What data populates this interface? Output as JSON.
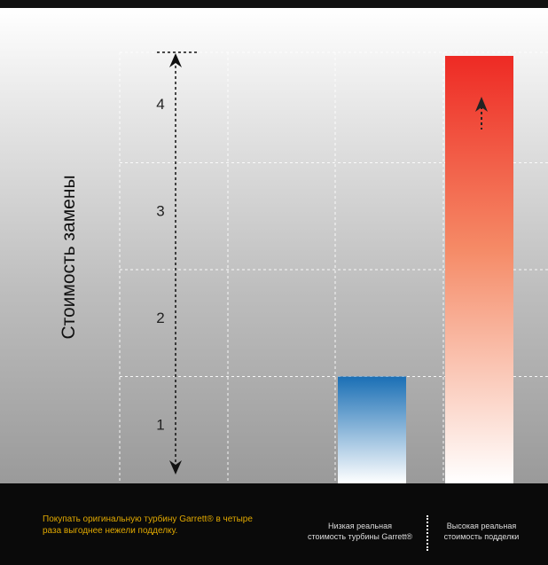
{
  "chart_data": {
    "type": "bar",
    "ylabel": "Стоимость замены",
    "y_ticks": [
      "1",
      "2",
      "3",
      "4"
    ],
    "ylim": [
      0,
      4.5
    ],
    "grid": true,
    "series": [
      {
        "category": "Низкая реальная стоимость турбины Garrett®",
        "value": 1,
        "color": "#1a6fb5"
      },
      {
        "category": "Высокая реальная стоимость подделки",
        "value": 4,
        "color": "#e8302a"
      }
    ]
  },
  "footer": {
    "note": "Покупать оригинальную турбину Garrett® в четыре раза выгоднее нежели подделку.",
    "caption_left_line1": "Низкая реальная",
    "caption_left_line2": "стоимость турбины Garrett®",
    "caption_right_line1": "Высокая реальная",
    "caption_right_line2": "стоимость подделки"
  }
}
